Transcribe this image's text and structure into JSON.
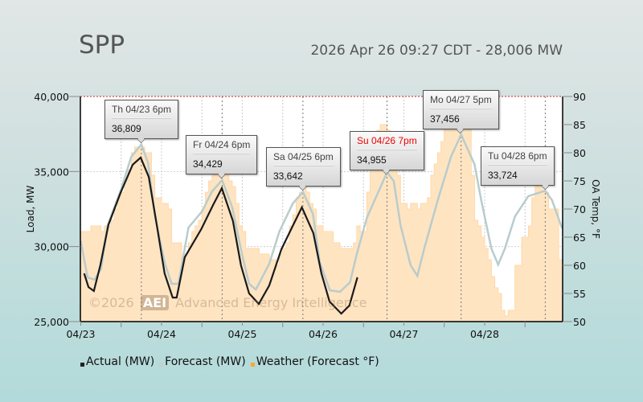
{
  "header": {
    "title": "SPP",
    "subtitle": "2026 Apr 26 09:27 CDT - 28,006 MW"
  },
  "watermark": {
    "copyright": "©2026",
    "logo": "AEI",
    "name": "Advanced Energy Intelligence"
  },
  "legend": [
    {
      "label": "Actual (MW)",
      "color": "#222222"
    },
    {
      "label": "Forecast (MW)",
      "color": "#cccccc"
    },
    {
      "label": "Weather (Forecast °F)",
      "color": "#f7a935"
    }
  ],
  "tooltips": [
    {
      "label": "Th 04/23 6pm",
      "value": "36,809"
    },
    {
      "label": "Fr 04/24 6pm",
      "value": "34,429"
    },
    {
      "label": "Sa 04/25 6pm",
      "value": "33,642"
    },
    {
      "label": "Su 04/26 7pm",
      "value": "34,955"
    },
    {
      "label": "Mo 04/27 5pm",
      "value": "37,456"
    },
    {
      "label": "Tu 04/28 6pm",
      "value": "33,724"
    }
  ],
  "chart_data": {
    "type": "line",
    "x_unit": "hours since 04/23 00:00",
    "x_range": [
      0,
      143
    ],
    "x_ticks": [
      "04/23",
      "04/24",
      "04/25",
      "04/26",
      "04/27",
      "04/28"
    ],
    "ylabel": "Load, MW",
    "ylim": [
      25000,
      40000
    ],
    "y_ticks": [
      "25,000",
      "30,000",
      "35,000",
      "40,000"
    ],
    "y2label": "OA Temp, °F",
    "y2lim": [
      50,
      90
    ],
    "y2_ticks": [
      "50",
      "55",
      "60",
      "65",
      "70",
      "75",
      "80",
      "85",
      "90"
    ],
    "peak_hours": [
      18,
      42,
      66,
      91,
      113,
      138
    ],
    "series": [
      {
        "name": "Weather (Forecast °F)",
        "axis": "right",
        "type": "area",
        "points": [
          [
            0,
            66
          ],
          [
            2,
            66
          ],
          [
            3,
            67
          ],
          [
            5,
            67
          ],
          [
            6,
            66
          ],
          [
            7,
            67
          ],
          [
            9,
            68
          ],
          [
            10,
            70
          ],
          [
            11,
            72
          ],
          [
            12,
            73
          ],
          [
            13,
            75
          ],
          [
            14,
            77
          ],
          [
            15,
            80
          ],
          [
            16,
            81
          ],
          [
            18,
            81
          ],
          [
            19,
            80
          ],
          [
            20,
            80
          ],
          [
            21,
            76
          ],
          [
            22,
            72
          ],
          [
            24,
            71
          ],
          [
            26,
            70
          ],
          [
            27,
            64
          ],
          [
            29,
            64
          ],
          [
            30,
            60
          ],
          [
            31,
            62
          ],
          [
            32,
            64
          ],
          [
            33,
            66
          ],
          [
            34,
            67
          ],
          [
            35,
            68
          ],
          [
            36,
            70
          ],
          [
            37,
            73
          ],
          [
            38,
            75
          ],
          [
            39,
            76
          ],
          [
            40,
            77
          ],
          [
            42,
            77
          ],
          [
            43,
            76
          ],
          [
            44,
            75
          ],
          [
            45,
            74
          ],
          [
            46,
            71
          ],
          [
            47,
            67
          ],
          [
            48,
            66
          ],
          [
            49,
            63
          ],
          [
            52,
            63
          ],
          [
            53,
            62
          ],
          [
            55,
            62
          ],
          [
            56,
            61
          ],
          [
            57,
            61
          ],
          [
            58,
            60
          ],
          [
            59,
            62
          ],
          [
            60,
            63
          ],
          [
            61,
            64
          ],
          [
            62,
            67
          ],
          [
            63,
            69
          ],
          [
            64,
            72
          ],
          [
            65,
            73
          ],
          [
            66,
            74
          ],
          [
            67,
            73
          ],
          [
            68,
            71
          ],
          [
            69,
            70
          ],
          [
            70,
            67
          ],
          [
            71,
            67
          ],
          [
            72,
            66
          ],
          [
            74,
            66
          ],
          [
            75,
            64
          ],
          [
            76,
            64
          ],
          [
            77,
            63
          ],
          [
            80,
            63
          ],
          [
            81,
            64
          ],
          [
            82,
            67
          ],
          [
            83,
            66
          ],
          [
            84,
            66
          ],
          [
            85,
            73
          ],
          [
            86,
            80
          ],
          [
            87,
            82
          ],
          [
            88,
            84
          ],
          [
            89,
            85
          ],
          [
            90,
            85
          ],
          [
            91,
            84
          ],
          [
            92,
            82
          ],
          [
            93,
            79
          ],
          [
            94,
            76
          ],
          [
            95,
            71
          ],
          [
            96,
            71
          ],
          [
            97,
            70
          ],
          [
            98,
            71
          ],
          [
            99,
            71
          ],
          [
            100,
            70
          ],
          [
            101,
            71
          ],
          [
            102,
            71
          ],
          [
            103,
            72
          ],
          [
            104,
            76
          ],
          [
            105,
            78
          ],
          [
            106,
            80
          ],
          [
            107,
            82
          ],
          [
            108,
            86
          ],
          [
            109,
            88
          ],
          [
            114,
            88
          ],
          [
            115,
            86
          ],
          [
            116,
            76
          ],
          [
            117,
            68
          ],
          [
            118,
            67
          ],
          [
            119,
            65
          ],
          [
            120,
            63
          ],
          [
            121,
            61
          ],
          [
            122,
            58
          ],
          [
            123,
            56
          ],
          [
            124,
            55
          ],
          [
            125,
            52
          ],
          [
            126,
            51
          ],
          [
            127,
            52
          ],
          [
            128,
            52
          ],
          [
            129,
            60
          ],
          [
            130,
            60
          ],
          [
            131,
            65
          ],
          [
            132,
            65
          ],
          [
            133,
            67
          ],
          [
            134,
            72
          ],
          [
            135,
            74
          ],
          [
            137,
            74
          ],
          [
            138,
            73
          ],
          [
            139,
            70
          ],
          [
            141,
            70
          ],
          [
            142,
            61
          ],
          [
            143,
            61
          ]
        ]
      },
      {
        "name": "Forecast (MW)",
        "axis": "left",
        "type": "line",
        "points": [
          [
            0,
            30360
          ],
          [
            2,
            27950
          ],
          [
            4,
            27790
          ],
          [
            6,
            28480
          ],
          [
            8,
            31430
          ],
          [
            12,
            33840
          ],
          [
            15,
            35980
          ],
          [
            18,
            36809
          ],
          [
            20,
            35550
          ],
          [
            22,
            32070
          ],
          [
            25,
            28850
          ],
          [
            27,
            27520
          ],
          [
            29,
            27520
          ],
          [
            32,
            31270
          ],
          [
            36,
            32340
          ],
          [
            39,
            33680
          ],
          [
            42,
            34429
          ],
          [
            45,
            32610
          ],
          [
            48,
            29390
          ],
          [
            50,
            27520
          ],
          [
            52,
            27140
          ],
          [
            56,
            28850
          ],
          [
            59,
            31000
          ],
          [
            63,
            32870
          ],
          [
            66,
            33642
          ],
          [
            69,
            32170
          ],
          [
            71,
            28960
          ],
          [
            74,
            27090
          ],
          [
            77,
            26980
          ],
          [
            80,
            27620
          ],
          [
            82,
            29500
          ],
          [
            85,
            31910
          ],
          [
            91,
            34955
          ],
          [
            93,
            34360
          ],
          [
            95,
            31430
          ],
          [
            98,
            28750
          ],
          [
            100,
            28050
          ],
          [
            102,
            29820
          ],
          [
            106,
            33040
          ],
          [
            110,
            35980
          ],
          [
            113,
            37456
          ],
          [
            117,
            35480
          ],
          [
            119,
            33070
          ],
          [
            122,
            29860
          ],
          [
            124,
            28800
          ],
          [
            126,
            29860
          ],
          [
            129,
            32000
          ],
          [
            133,
            33360
          ],
          [
            138,
            33724
          ],
          [
            140,
            33090
          ],
          [
            143,
            31220
          ]
        ]
      },
      {
        "name": "Actual (MW)",
        "axis": "left",
        "type": "line",
        "points": [
          [
            1,
            28210
          ],
          [
            2.3,
            27300
          ],
          [
            3.9,
            27040
          ],
          [
            5.8,
            28750
          ],
          [
            8.2,
            31430
          ],
          [
            11.8,
            33570
          ],
          [
            15.4,
            35450
          ],
          [
            17.8,
            35930
          ],
          [
            20.2,
            34640
          ],
          [
            22.6,
            31430
          ],
          [
            24.9,
            28210
          ],
          [
            27.3,
            26600
          ],
          [
            28.5,
            26600
          ],
          [
            30.9,
            29290
          ],
          [
            35.8,
            31160
          ],
          [
            39.3,
            32770
          ],
          [
            41.9,
            33890
          ],
          [
            45.2,
            31700
          ],
          [
            47.6,
            28750
          ],
          [
            50,
            26880
          ],
          [
            52.9,
            26180
          ],
          [
            56,
            27410
          ],
          [
            59.6,
            29820
          ],
          [
            63.1,
            31430
          ],
          [
            65.7,
            32610
          ],
          [
            69.1,
            30890
          ],
          [
            71.5,
            28210
          ],
          [
            73.9,
            26340
          ],
          [
            77.4,
            25530
          ],
          [
            79.8,
            26070
          ],
          [
            82.2,
            27950
          ]
        ]
      }
    ]
  }
}
